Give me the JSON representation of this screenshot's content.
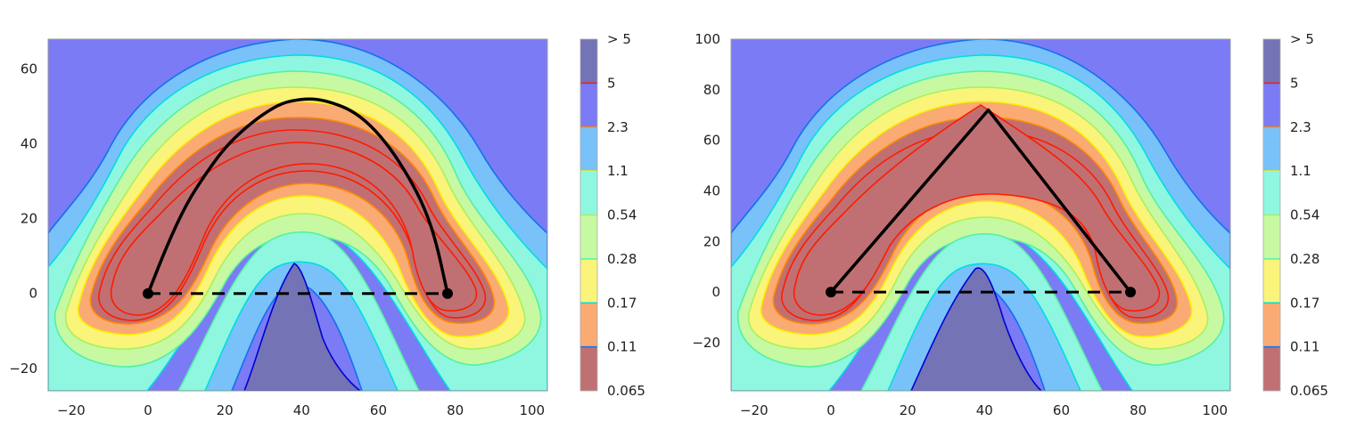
{
  "chart_data": [
    {
      "type": "contour",
      "title": "",
      "xlabel": "",
      "ylabel": "",
      "xlim": [
        -26,
        104
      ],
      "ylim": [
        -26,
        68
      ],
      "xticks": [
        -20,
        0,
        20,
        40,
        60,
        80,
        100
      ],
      "yticks": [
        -20,
        0,
        20,
        40,
        60
      ],
      "xtick_labels": [
        "−20",
        "0",
        "20",
        "40",
        "60",
        "80",
        "100"
      ],
      "ytick_labels": [
        "−20",
        "0",
        "20",
        "40",
        "60"
      ],
      "path_type": "arc",
      "path_points": [
        [
          0,
          0
        ],
        [
          5,
          13
        ],
        [
          10,
          24
        ],
        [
          15,
          32
        ],
        [
          20,
          39
        ],
        [
          25,
          44
        ],
        [
          30,
          48
        ],
        [
          35,
          51
        ],
        [
          40,
          52
        ],
        [
          44,
          52
        ],
        [
          48,
          51
        ],
        [
          53,
          49
        ],
        [
          58,
          45
        ],
        [
          63,
          39
        ],
        [
          68,
          31
        ],
        [
          72,
          23
        ],
        [
          75,
          14
        ],
        [
          78,
          0
        ]
      ],
      "baseline": {
        "from": [
          0,
          0
        ],
        "to": [
          78,
          0
        ],
        "style": "dashed"
      },
      "endpoints": [
        [
          0,
          0
        ],
        [
          78,
          0
        ]
      ],
      "grid": false
    },
    {
      "type": "contour",
      "title": "",
      "xlabel": "",
      "ylabel": "",
      "xlim": [
        -26,
        104
      ],
      "ylim": [
        -39,
        100
      ],
      "xticks": [
        -20,
        0,
        20,
        40,
        60,
        80,
        100
      ],
      "yticks": [
        -20,
        0,
        20,
        40,
        60,
        80,
        100
      ],
      "xtick_labels": [
        "−20",
        "0",
        "20",
        "40",
        "60",
        "80",
        "100"
      ],
      "ytick_labels": [
        "−20",
        "0",
        "20",
        "40",
        "60",
        "80",
        "100"
      ],
      "path_type": "polyline",
      "path_points": [
        [
          0,
          0
        ],
        [
          41,
          72
        ],
        [
          78,
          0
        ]
      ],
      "baseline": {
        "from": [
          0,
          0
        ],
        "to": [
          78,
          0
        ],
        "style": "dashed"
      },
      "endpoints": [
        [
          0,
          0
        ],
        [
          78,
          0
        ]
      ],
      "grid": false
    }
  ],
  "colorbar": {
    "labels": [
      "> 5",
      "5",
      "2.3",
      "1.1",
      "0.54",
      "0.28",
      "0.17",
      "0.11",
      "0.065"
    ],
    "band_colors": [
      "#7373b6",
      "#7b7bf5",
      "#79c1f9",
      "#8ff7df",
      "#c7f9a2",
      "#faf47a",
      "#faab73",
      "#c07072"
    ],
    "line_colors": [
      "#0000d6",
      "#0f72ee",
      "#00dbe6",
      "#54f0a4",
      "#a8f060",
      "#f8f000",
      "#ff8a00",
      "#ff1a00"
    ]
  }
}
